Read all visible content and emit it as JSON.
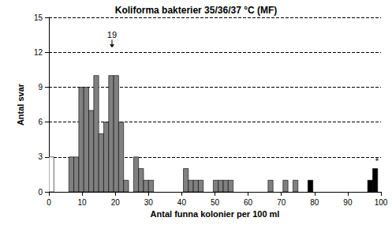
{
  "chart_data": {
    "type": "histogram",
    "title": "Koliforma bakterier 35/36/37 °C (MF)",
    "x_label": "Antal funna kolonier per 100 ml",
    "y_label": "Antal svar",
    "bins": [
      0,
      1.5,
      3,
      4.5,
      6,
      7.5,
      9,
      10.5,
      12,
      13.5,
      15,
      16.5,
      18,
      19.5,
      21,
      22.5,
      24,
      25.5,
      27,
      28.5,
      30,
      31.5,
      33,
      34.5,
      36,
      37.5,
      39,
      40.5,
      42,
      43.5,
      45,
      46.5,
      48,
      49.5,
      51,
      52.5,
      54,
      55.5,
      57,
      58.5,
      60,
      61.5,
      63,
      64.5,
      66,
      67.5,
      69,
      70.5,
      72,
      73.5,
      75,
      76.5,
      78,
      79.5,
      81,
      82.5,
      84,
      85.5,
      87,
      88.5,
      90,
      91.5,
      93,
      94.5,
      96,
      97.5,
      99
    ],
    "values": [
      3,
      0,
      0,
      0,
      3,
      3,
      9,
      9,
      7,
      10,
      5,
      6,
      10,
      10,
      6,
      1,
      0,
      3,
      2,
      1,
      1,
      0,
      0,
      0,
      0,
      0,
      0,
      2,
      1,
      1,
      1,
      0,
      0,
      1,
      1,
      1,
      1,
      0,
      0,
      0,
      0,
      0,
      0,
      0,
      1,
      0,
      0,
      1,
      0,
      1,
      0,
      0,
      1,
      0,
      0,
      0,
      0,
      0,
      0,
      0,
      0,
      0,
      0,
      0,
      1,
      2
    ],
    "colors": [
      "#ffffff",
      "#808080",
      "#808080",
      "#808080",
      "#808080",
      "#808080",
      "#808080",
      "#808080",
      "#808080",
      "#808080",
      "#808080",
      "#808080",
      "#808080",
      "#808080",
      "#808080",
      "#808080",
      "#808080",
      "#808080",
      "#808080",
      "#808080",
      "#808080",
      "#808080",
      "#808080",
      "#808080",
      "#808080",
      "#808080",
      "#808080",
      "#808080",
      "#808080",
      "#808080",
      "#808080",
      "#808080",
      "#808080",
      "#808080",
      "#808080",
      "#808080",
      "#808080",
      "#808080",
      "#808080",
      "#808080",
      "#808080",
      "#808080",
      "#808080",
      "#808080",
      "#808080",
      "#808080",
      "#808080",
      "#808080",
      "#808080",
      "#808080",
      "#808080",
      "#808080",
      "#000000",
      "#808080",
      "#808080",
      "#808080",
      "#808080",
      "#808080",
      "#808080",
      "#808080",
      "#808080",
      "#808080",
      "#808080",
      "#808080",
      "#000000",
      "#000000"
    ],
    "xlim": [
      0,
      100
    ],
    "xticks": [
      0,
      10,
      20,
      30,
      40,
      50,
      60,
      70,
      80,
      90,
      100
    ],
    "ylim": [
      0,
      15
    ],
    "yticks": [
      0,
      3,
      6,
      9,
      12,
      15
    ],
    "grid": true,
    "annotations": [
      {
        "text": "19",
        "x": 19,
        "y": 12.4,
        "marker": "arrow"
      },
      {
        "text": "*",
        "x": 98.8,
        "y": 2.2
      }
    ]
  }
}
